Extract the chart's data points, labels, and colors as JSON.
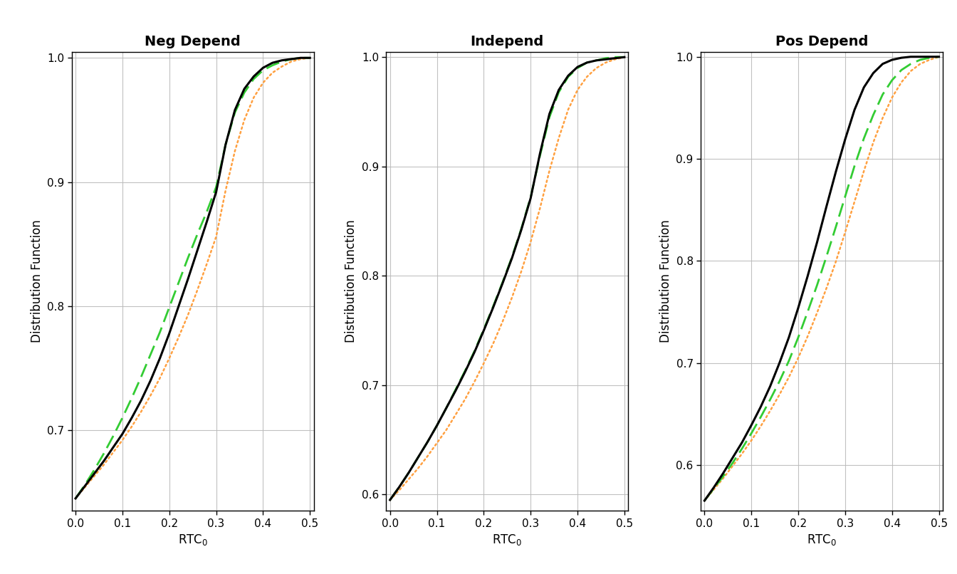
{
  "panels": [
    {
      "title": "Neg Depend",
      "ylim": [
        0.635,
        1.005
      ],
      "yticks": [
        0.7,
        0.8,
        0.9,
        1.0
      ],
      "black_x": [
        0.0,
        0.02,
        0.04,
        0.06,
        0.08,
        0.1,
        0.12,
        0.14,
        0.16,
        0.18,
        0.2,
        0.22,
        0.24,
        0.26,
        0.28,
        0.3,
        0.32,
        0.34,
        0.36,
        0.38,
        0.4,
        0.42,
        0.44,
        0.46,
        0.48,
        0.5
      ],
      "black_y": [
        0.645,
        0.655,
        0.665,
        0.675,
        0.686,
        0.697,
        0.71,
        0.724,
        0.74,
        0.758,
        0.778,
        0.8,
        0.822,
        0.845,
        0.868,
        0.892,
        0.93,
        0.958,
        0.975,
        0.985,
        0.992,
        0.996,
        0.998,
        0.999,
        1.0,
        1.0
      ],
      "green_x": [
        0.0,
        0.02,
        0.04,
        0.06,
        0.08,
        0.1,
        0.12,
        0.14,
        0.16,
        0.18,
        0.2,
        0.22,
        0.24,
        0.26,
        0.28,
        0.3,
        0.32,
        0.34,
        0.36,
        0.38,
        0.4,
        0.42,
        0.44,
        0.46,
        0.48,
        0.5
      ],
      "green_y": [
        0.645,
        0.656,
        0.668,
        0.681,
        0.695,
        0.71,
        0.726,
        0.743,
        0.761,
        0.779,
        0.799,
        0.819,
        0.839,
        0.858,
        0.876,
        0.896,
        0.93,
        0.956,
        0.972,
        0.983,
        0.99,
        0.994,
        0.997,
        0.999,
        1.0,
        1.0
      ],
      "orange_x": [
        0.0,
        0.02,
        0.04,
        0.06,
        0.08,
        0.1,
        0.12,
        0.14,
        0.16,
        0.18,
        0.2,
        0.22,
        0.24,
        0.26,
        0.28,
        0.3,
        0.32,
        0.34,
        0.36,
        0.38,
        0.4,
        0.42,
        0.44,
        0.46,
        0.48,
        0.5
      ],
      "orange_y": [
        0.645,
        0.654,
        0.663,
        0.672,
        0.682,
        0.692,
        0.703,
        0.715,
        0.728,
        0.742,
        0.758,
        0.775,
        0.793,
        0.813,
        0.834,
        0.856,
        0.893,
        0.925,
        0.95,
        0.968,
        0.98,
        0.988,
        0.993,
        0.997,
        0.999,
        1.0
      ]
    },
    {
      "title": "Independ",
      "ylim": [
        0.585,
        1.005
      ],
      "yticks": [
        0.6,
        0.7,
        0.8,
        0.9,
        1.0
      ],
      "black_x": [
        0.0,
        0.02,
        0.04,
        0.06,
        0.08,
        0.1,
        0.12,
        0.14,
        0.16,
        0.18,
        0.2,
        0.22,
        0.24,
        0.26,
        0.28,
        0.3,
        0.32,
        0.34,
        0.36,
        0.38,
        0.4,
        0.42,
        0.44,
        0.46,
        0.48,
        0.5
      ],
      "black_y": [
        0.595,
        0.607,
        0.62,
        0.634,
        0.648,
        0.663,
        0.679,
        0.695,
        0.712,
        0.73,
        0.75,
        0.771,
        0.793,
        0.816,
        0.842,
        0.871,
        0.912,
        0.948,
        0.97,
        0.983,
        0.991,
        0.995,
        0.997,
        0.998,
        0.999,
        1.0
      ],
      "green_x": [
        0.0,
        0.02,
        0.04,
        0.06,
        0.08,
        0.1,
        0.12,
        0.14,
        0.16,
        0.18,
        0.2,
        0.22,
        0.24,
        0.26,
        0.28,
        0.3,
        0.32,
        0.34,
        0.36,
        0.38,
        0.4,
        0.42,
        0.44,
        0.46,
        0.48,
        0.5
      ],
      "green_y": [
        0.595,
        0.607,
        0.62,
        0.634,
        0.648,
        0.663,
        0.679,
        0.696,
        0.713,
        0.731,
        0.751,
        0.772,
        0.794,
        0.817,
        0.843,
        0.872,
        0.91,
        0.945,
        0.968,
        0.982,
        0.99,
        0.995,
        0.997,
        0.999,
        1.0,
        1.0
      ],
      "orange_x": [
        0.0,
        0.02,
        0.04,
        0.06,
        0.08,
        0.1,
        0.12,
        0.14,
        0.16,
        0.18,
        0.2,
        0.22,
        0.24,
        0.26,
        0.28,
        0.3,
        0.32,
        0.34,
        0.36,
        0.38,
        0.4,
        0.42,
        0.44,
        0.46,
        0.48,
        0.5
      ],
      "orange_y": [
        0.595,
        0.604,
        0.614,
        0.624,
        0.635,
        0.647,
        0.659,
        0.673,
        0.687,
        0.703,
        0.72,
        0.738,
        0.758,
        0.78,
        0.804,
        0.831,
        0.862,
        0.896,
        0.926,
        0.952,
        0.97,
        0.982,
        0.99,
        0.995,
        0.998,
        1.0
      ]
    },
    {
      "title": "Pos Depend",
      "ylim": [
        0.555,
        1.005
      ],
      "yticks": [
        0.6,
        0.7,
        0.8,
        0.9,
        1.0
      ],
      "black_x": [
        0.0,
        0.02,
        0.04,
        0.06,
        0.08,
        0.1,
        0.12,
        0.14,
        0.16,
        0.18,
        0.2,
        0.22,
        0.24,
        0.26,
        0.28,
        0.3,
        0.32,
        0.34,
        0.36,
        0.38,
        0.4,
        0.42,
        0.44,
        0.46,
        0.48,
        0.5
      ],
      "black_y": [
        0.565,
        0.578,
        0.592,
        0.607,
        0.622,
        0.639,
        0.657,
        0.677,
        0.7,
        0.725,
        0.754,
        0.785,
        0.818,
        0.853,
        0.887,
        0.919,
        0.948,
        0.97,
        0.984,
        0.993,
        0.997,
        0.999,
        1.0,
        1.0,
        1.0,
        1.0
      ],
      "green_x": [
        0.0,
        0.02,
        0.04,
        0.06,
        0.08,
        0.1,
        0.12,
        0.14,
        0.16,
        0.18,
        0.2,
        0.22,
        0.24,
        0.26,
        0.28,
        0.3,
        0.32,
        0.34,
        0.36,
        0.38,
        0.4,
        0.42,
        0.44,
        0.46,
        0.48,
        0.5
      ],
      "green_y": [
        0.565,
        0.577,
        0.589,
        0.602,
        0.616,
        0.631,
        0.647,
        0.664,
        0.682,
        0.702,
        0.725,
        0.75,
        0.776,
        0.804,
        0.833,
        0.863,
        0.893,
        0.92,
        0.943,
        0.963,
        0.977,
        0.987,
        0.993,
        0.997,
        0.999,
        1.0
      ],
      "orange_x": [
        0.0,
        0.02,
        0.04,
        0.06,
        0.08,
        0.1,
        0.12,
        0.14,
        0.16,
        0.18,
        0.2,
        0.22,
        0.24,
        0.26,
        0.28,
        0.3,
        0.32,
        0.34,
        0.36,
        0.38,
        0.4,
        0.42,
        0.44,
        0.46,
        0.48,
        0.5
      ],
      "orange_y": [
        0.565,
        0.576,
        0.587,
        0.599,
        0.611,
        0.624,
        0.638,
        0.653,
        0.669,
        0.686,
        0.705,
        0.726,
        0.749,
        0.773,
        0.799,
        0.828,
        0.858,
        0.888,
        0.916,
        0.94,
        0.96,
        0.975,
        0.986,
        0.993,
        0.997,
        1.0
      ]
    }
  ],
  "xlabel": "RTC$_0$",
  "ylabel": "Distribution Function",
  "xlim": [
    -0.008,
    0.508
  ],
  "xticks": [
    0.0,
    0.1,
    0.2,
    0.3,
    0.4,
    0.5
  ],
  "black_color": "#000000",
  "green_color": "#33CC33",
  "orange_color": "#FFA040",
  "background_color": "#FFFFFF",
  "grid_color": "#BBBBBB",
  "title_fontsize": 14,
  "axis_label_fontsize": 12,
  "tick_fontsize": 11
}
